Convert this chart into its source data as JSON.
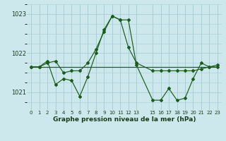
{
  "xlabel": "Graphe pression niveau de la mer (hPa)",
  "background_color": "#cce8ec",
  "grid_color": "#a8cdd4",
  "line_color": "#1a5c1a",
  "ylim": [
    1020.55,
    1023.25
  ],
  "xlim": [
    -0.5,
    23.5
  ],
  "yticks": [
    1021,
    1022,
    1023
  ],
  "xtick_positions": [
    0,
    1,
    2,
    3,
    4,
    5,
    6,
    7,
    8,
    9,
    10,
    11,
    12,
    13,
    15,
    16,
    17,
    18,
    19,
    20,
    21,
    22,
    23
  ],
  "xtick_labels": [
    "0",
    "1",
    "2",
    "3",
    "4",
    "5",
    "6",
    "7",
    "8",
    "9",
    "10",
    "11",
    "12",
    "13",
    "15",
    "16",
    "17",
    "18",
    "19",
    "20",
    "21",
    "22",
    "23"
  ],
  "line1_x": [
    0,
    1,
    2,
    3,
    4,
    5,
    6,
    7,
    8,
    9,
    10,
    11,
    12,
    13,
    15,
    16,
    17,
    18,
    19,
    20,
    21,
    22,
    23
  ],
  "line1_y": [
    1021.65,
    1021.65,
    1021.75,
    1021.8,
    1021.5,
    1021.55,
    1021.55,
    1021.75,
    1022.1,
    1022.55,
    1022.95,
    1022.85,
    1022.15,
    1021.75,
    1021.55,
    1021.55,
    1021.55,
    1021.55,
    1021.55,
    1021.55,
    1021.6,
    1021.65,
    1021.65
  ],
  "line2_x": [
    0,
    1,
    2,
    3,
    4,
    5,
    6,
    7,
    8,
    9,
    10,
    11,
    12,
    13,
    15,
    16,
    17,
    18,
    19,
    20,
    21,
    22,
    23
  ],
  "line2_y": [
    1021.65,
    1021.65,
    1021.8,
    1021.2,
    1021.35,
    1021.3,
    1020.9,
    1021.4,
    1022.0,
    1022.6,
    1022.95,
    1022.85,
    1022.85,
    1021.7,
    1020.8,
    1020.8,
    1021.1,
    1020.8,
    1020.85,
    1021.35,
    1021.75,
    1021.65,
    1021.7
  ],
  "line3_x": [
    0,
    1,
    2,
    3,
    4,
    5,
    6,
    7,
    8,
    9,
    10,
    11,
    12,
    13,
    15,
    16,
    17,
    18,
    19,
    20,
    21,
    22,
    23
  ],
  "line3_y": [
    1021.65,
    1021.65,
    1021.65,
    1021.65,
    1021.65,
    1021.65,
    1021.65,
    1021.65,
    1021.65,
    1021.65,
    1021.65,
    1021.65,
    1021.65,
    1021.65,
    1021.65,
    1021.65,
    1021.65,
    1021.65,
    1021.65,
    1021.65,
    1021.65,
    1021.65,
    1021.65
  ]
}
